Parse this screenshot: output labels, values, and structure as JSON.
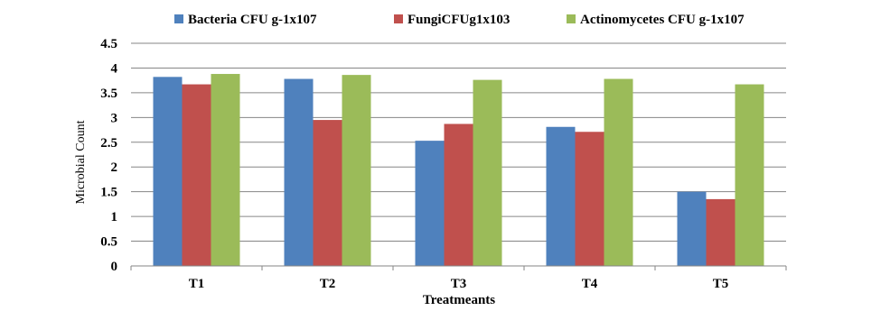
{
  "chart_data": {
    "type": "bar",
    "categories": [
      "T1",
      "T2",
      "T3",
      "T4",
      "T5"
    ],
    "series": [
      {
        "name": "Bacteria CFU g-1x107",
        "values": [
          3.82,
          3.78,
          2.53,
          2.81,
          1.5
        ],
        "color": "#4f81bd"
      },
      {
        "name": "FungiCFUg1x103",
        "values": [
          3.67,
          2.95,
          2.87,
          2.71,
          1.35
        ],
        "color": "#c0504d"
      },
      {
        "name": "Actinomycetes CFU g-1x107",
        "values": [
          3.88,
          3.86,
          3.76,
          3.78,
          3.67
        ],
        "color": "#9bbb59"
      }
    ],
    "xlabel": "Treatmeants",
    "ylabel": "Microbial Count",
    "ylim": [
      0,
      4.5
    ],
    "yticks": [
      "0",
      "0.5",
      "1",
      "1.5",
      "2",
      "2.5",
      "3",
      "3.5",
      "4",
      "4.5"
    ],
    "grid": true,
    "legend_position": "top"
  }
}
